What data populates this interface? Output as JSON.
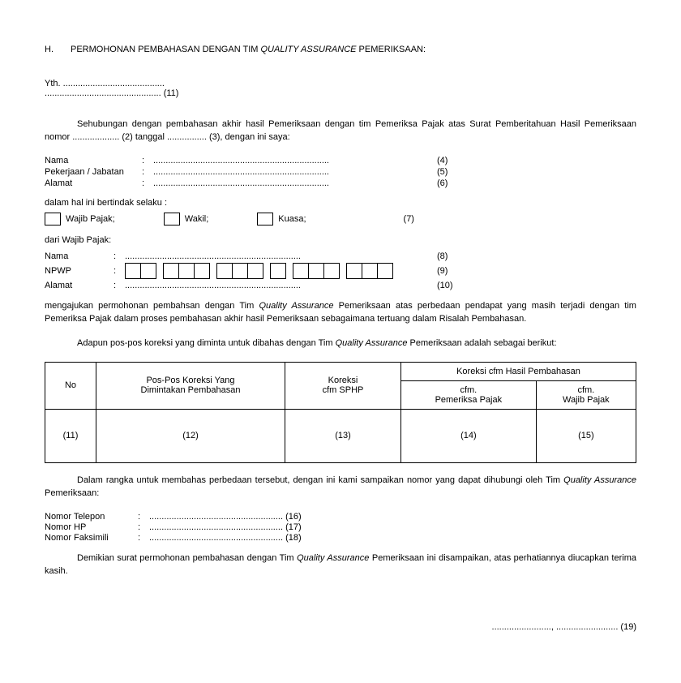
{
  "header": {
    "letter": "H.",
    "title_pre": "PERMOHONAN PEMBAHASAN DENGAN TIM ",
    "title_italic": "QUALITY ASSURANCE",
    "title_post": " PEMERIKSAAN:"
  },
  "yth": {
    "line1": "Yth. .........................................",
    "line2": "............................................... (11)"
  },
  "intro": {
    "text": "Sehubungan dengan pembahasan akhir hasil Pemeriksaan dengan tim Pemeriksa Pajak atas Surat Pemberitahuan Hasil Pemeriksaan nomor ................... (2) tanggal ................ (3), dengan ini saya:"
  },
  "fields1": {
    "nama_label": "Nama",
    "nama_dots": ".......................................................................",
    "nama_num": "(4)",
    "pekerjaan_label": "Pekerjaan / Jabatan",
    "pekerjaan_dots": ".......................................................................",
    "pekerjaan_num": "(5)",
    "alamat_label": "Alamat",
    "alamat_dots": ".......................................................................",
    "alamat_num": "(6)"
  },
  "selaku": "dalam hal ini bertindak selaku :",
  "checkboxes": {
    "opt1": "Wajib Pajak;",
    "opt2": "Wakil;",
    "opt3": "Kuasa;",
    "num": "(7)"
  },
  "dari": "dari Wajib Pajak:",
  "fields2": {
    "nama_label": "Nama",
    "nama_dots": ".......................................................................",
    "nama_num": "(8)",
    "npwp_label": "NPWP",
    "npwp_num": "(9)",
    "alamat_label": "Alamat",
    "alamat_dots": ".......................................................................",
    "alamat_num": "(10)"
  },
  "npwp_groups": [
    2,
    3,
    3,
    1,
    3,
    3
  ],
  "para2": {
    "pre": "mengajukan permohonan pembahsan dengan Tim ",
    "italic": "Quality Assurance",
    "post": " Pemeriksaan atas perbedaan pendapat yang masih terjadi dengan tim Pemeriksa Pajak dalam proses pembahasan akhir hasil Pemeriksaan sebagaimana tertuang dalam Risalah Pembahasan."
  },
  "para3": {
    "pre": "Adapun pos-pos koreksi yang diminta untuk dibahas dengan Tim ",
    "italic": "Quality Assurance",
    "post": " Pemeriksaan adalah sebagai berikut:"
  },
  "table": {
    "h_no": "No",
    "h_pos": "Pos-Pos Koreksi Yang\nDimintakan Pembahasan",
    "h_koreksi": "Koreksi\ncfm SPHP",
    "h_cfm": "Koreksi cfm Hasil Pembahasan",
    "h_pemeriksa": "cfm.\nPemeriksa Pajak",
    "h_wajib": "cfm.\nWajib Pajak",
    "c11": "(11)",
    "c12": "(12)",
    "c13": "(13)",
    "c14": "(14)",
    "c15": "(15)"
  },
  "para4": {
    "pre": "Dalam rangka untuk membahas perbedaan tersebut, dengan ini kami sampaikan nomor yang dapat dihubungi oleh Tim ",
    "italic": "Quality Assurance",
    "post": " Pemeriksaan:"
  },
  "contact": {
    "telepon_label": "Nomor Telepon",
    "telepon_dots": "...................................................... (16)",
    "hp_label": "Nomor HP",
    "hp_dots": "...................................................... (17)",
    "fax_label": "Nomor Faksimili",
    "fax_dots": "...................................................... (18)"
  },
  "para5": {
    "pre": "Demikian surat permohonan pembahasan dengan Tim ",
    "italic": "Quality Assurance",
    "post": " Pemeriksaan ini disampaikan, atas perhatiannya diucapkan terima kasih."
  },
  "signature": "........................, ......................... (19)"
}
